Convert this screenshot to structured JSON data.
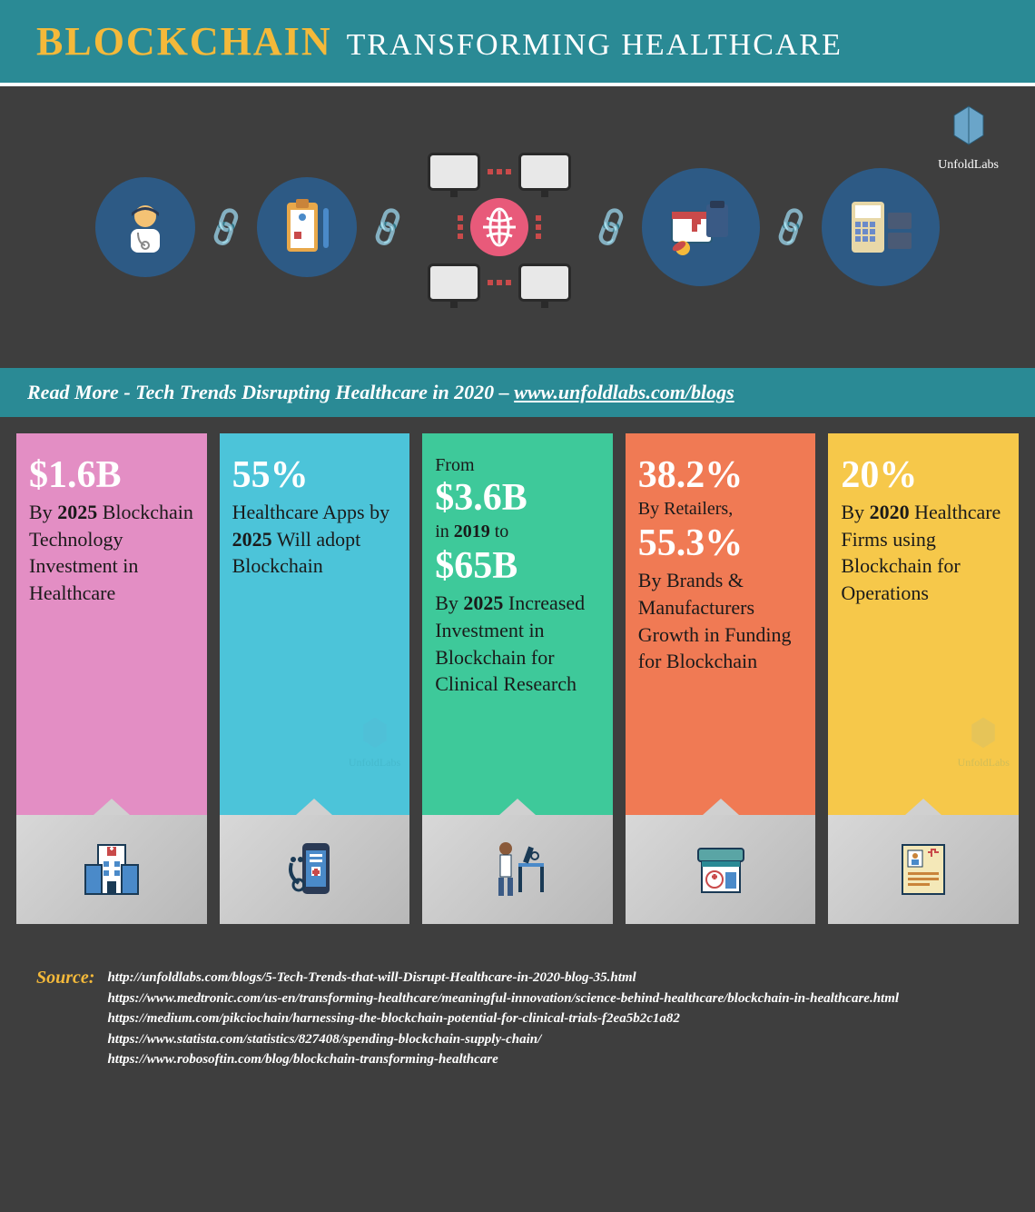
{
  "header": {
    "word1": "BLOCKCHAIN",
    "word2": "TRANSFORMING HEALTHCARE"
  },
  "logo_text": "UnfoldLabs",
  "readmore": {
    "prefix": "Read More   -   ",
    "text": "Tech Trends Disrupting Healthcare in 2020",
    "suffix": "   –   ",
    "link": "www.unfoldlabs.com/blogs"
  },
  "cards": [
    {
      "bg": "#e38ec4",
      "stat1": "$1.6B",
      "desc_html": "By <b>2025</b> Blockchain Technology Investment in Healthcare",
      "icon": "hospital"
    },
    {
      "bg": "#4cc4d9",
      "stat1": "55%",
      "desc_html": "Healthcare Apps by <b>2025</b> Will adopt Blockchain",
      "watermark": true,
      "icon": "phone-med"
    },
    {
      "bg": "#3ec99a",
      "pre": "From",
      "stat1": "$3.6B",
      "mid1": "in <b>2019</b> to",
      "stat2": "$65B",
      "desc_html": "By <b>2025</b> Increased Investment in Blockchain for Clinical Research",
      "icon": "researcher"
    },
    {
      "bg": "#f07a54",
      "stat1": "38.2%",
      "mid1": "By Retailers,",
      "stat2": "55.3%",
      "desc_html": "By Brands & Manufacturers Growth in Funding for Blockchain",
      "icon": "kiosk"
    },
    {
      "bg": "#f6c84a",
      "stat1": "20%",
      "desc_html": "By <b>2020</b> Healthcare Firms using Blockchain for Operations",
      "watermark": true,
      "icon": "document"
    }
  ],
  "sources": {
    "label": "Source:",
    "items": [
      "http://unfoldlabs.com/blogs/5-Tech-Trends-that-will-Disrupt-Healthcare-in-2020-blog-35.html",
      "https://www.medtronic.com/us-en/transforming-healthcare/meaningful-innovation/science-behind-healthcare/blockchain-in-healthcare.html",
      "https://medium.com/pikciochain/harnessing-the-blockchain-potential-for-clinical-trials-f2ea5b2c1a82",
      "https://www.statista.com/statistics/827408/spending-blockchain-supply-chain/",
      "https://www.robosoftin.com/blog/blockchain-transforming-healthcare"
    ]
  },
  "colors": {
    "header_bg": "#2a8a95",
    "page_bg": "#3e3e3e",
    "accent_yellow": "#f4b93a"
  }
}
